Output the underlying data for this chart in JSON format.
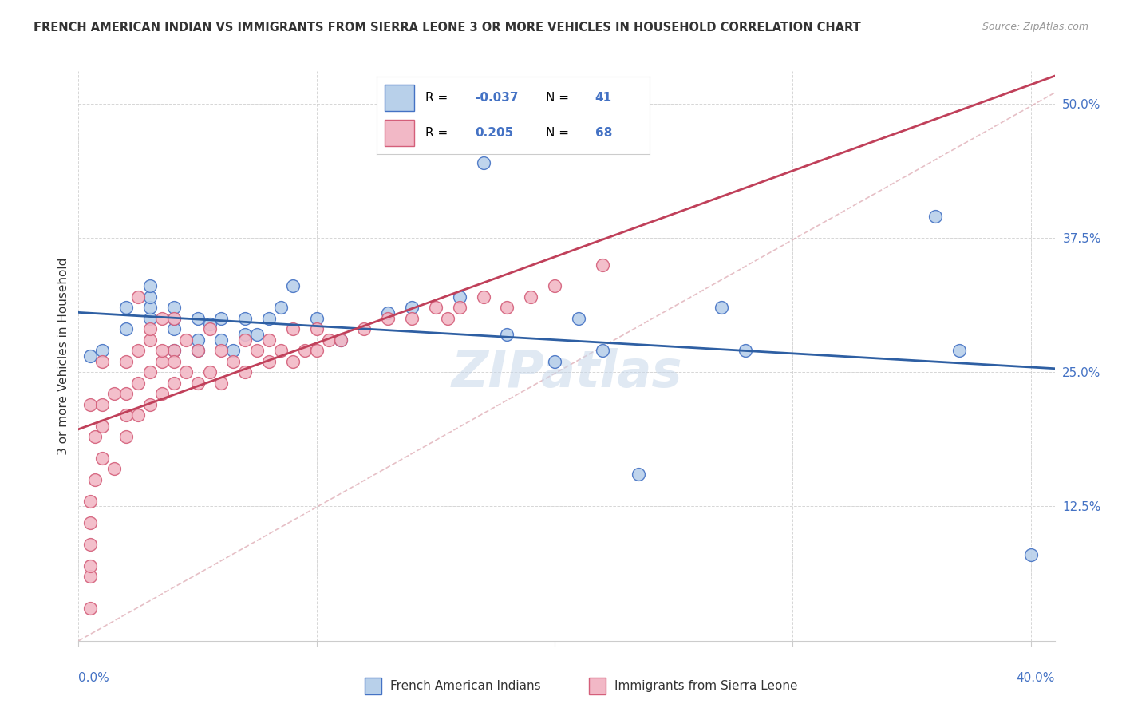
{
  "title": "FRENCH AMERICAN INDIAN VS IMMIGRANTS FROM SIERRA LEONE 3 OR MORE VEHICLES IN HOUSEHOLD CORRELATION CHART",
  "source": "Source: ZipAtlas.com",
  "ylabel": "3 or more Vehicles in Household",
  "legend1_R": "-0.037",
  "legend1_N": "41",
  "legend2_R": "0.205",
  "legend2_N": "68",
  "legend1_fill": "#b8d0ea",
  "legend2_fill": "#f2b8c6",
  "blue_color": "#4472c4",
  "pink_color": "#d45f7a",
  "trend1_color": "#2e5fa3",
  "trend2_color": "#c0405a",
  "diag_color": "#e0b0b8",
  "watermark": "ZIPatlas",
  "blue_scatter_x": [
    0.005,
    0.01,
    0.02,
    0.02,
    0.03,
    0.03,
    0.03,
    0.03,
    0.04,
    0.04,
    0.04,
    0.04,
    0.05,
    0.05,
    0.05,
    0.055,
    0.06,
    0.06,
    0.065,
    0.07,
    0.07,
    0.075,
    0.08,
    0.085,
    0.09,
    0.1,
    0.11,
    0.13,
    0.14,
    0.16,
    0.17,
    0.18,
    0.2,
    0.21,
    0.22,
    0.235,
    0.27,
    0.28,
    0.36,
    0.37,
    0.4
  ],
  "blue_scatter_y": [
    0.265,
    0.27,
    0.29,
    0.31,
    0.3,
    0.31,
    0.32,
    0.33,
    0.27,
    0.29,
    0.3,
    0.31,
    0.27,
    0.28,
    0.3,
    0.295,
    0.28,
    0.3,
    0.27,
    0.285,
    0.3,
    0.285,
    0.3,
    0.31,
    0.33,
    0.3,
    0.28,
    0.305,
    0.31,
    0.32,
    0.445,
    0.285,
    0.26,
    0.3,
    0.27,
    0.155,
    0.31,
    0.27,
    0.395,
    0.27,
    0.08
  ],
  "pink_scatter_x": [
    0.005,
    0.005,
    0.005,
    0.005,
    0.005,
    0.005,
    0.005,
    0.007,
    0.007,
    0.01,
    0.01,
    0.01,
    0.01,
    0.015,
    0.015,
    0.02,
    0.02,
    0.02,
    0.02,
    0.025,
    0.025,
    0.025,
    0.03,
    0.03,
    0.03,
    0.035,
    0.035,
    0.035,
    0.04,
    0.04,
    0.04,
    0.045,
    0.045,
    0.05,
    0.05,
    0.055,
    0.055,
    0.06,
    0.06,
    0.065,
    0.07,
    0.07,
    0.075,
    0.08,
    0.08,
    0.085,
    0.09,
    0.09,
    0.095,
    0.1,
    0.1,
    0.105,
    0.11,
    0.12,
    0.13,
    0.14,
    0.15,
    0.155,
    0.16,
    0.17,
    0.18,
    0.19,
    0.2,
    0.22,
    0.025,
    0.03,
    0.035,
    0.04
  ],
  "pink_scatter_y": [
    0.03,
    0.06,
    0.07,
    0.09,
    0.11,
    0.13,
    0.22,
    0.15,
    0.19,
    0.17,
    0.2,
    0.22,
    0.26,
    0.16,
    0.23,
    0.19,
    0.21,
    0.23,
    0.26,
    0.21,
    0.24,
    0.27,
    0.22,
    0.25,
    0.28,
    0.23,
    0.26,
    0.3,
    0.24,
    0.27,
    0.3,
    0.25,
    0.28,
    0.24,
    0.27,
    0.25,
    0.29,
    0.24,
    0.27,
    0.26,
    0.25,
    0.28,
    0.27,
    0.26,
    0.28,
    0.27,
    0.26,
    0.29,
    0.27,
    0.27,
    0.29,
    0.28,
    0.28,
    0.29,
    0.3,
    0.3,
    0.31,
    0.3,
    0.31,
    0.32,
    0.31,
    0.32,
    0.33,
    0.35,
    0.32,
    0.29,
    0.27,
    0.26
  ]
}
